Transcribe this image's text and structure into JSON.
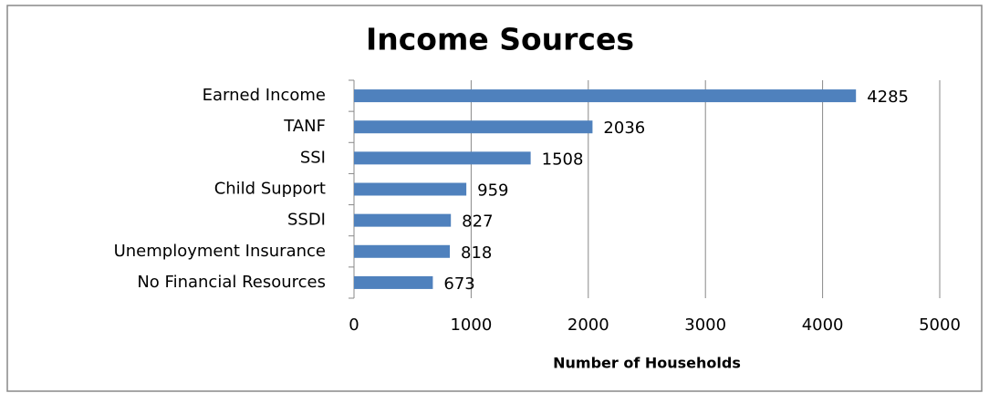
{
  "chart_data": {
    "type": "bar",
    "orientation": "horizontal",
    "title": "Income Sources",
    "x_label": "Number of Households",
    "categories": [
      "Earned Income",
      "TANF",
      "SSI",
      "Child Support",
      "SSDI",
      "Unemployment Insurance",
      "No Financial Resources"
    ],
    "values": [
      4285,
      2036,
      1508,
      959,
      827,
      818,
      673
    ],
    "color": "#4f81bd",
    "xlim": [
      0,
      5000
    ],
    "xticks": [
      0,
      1000,
      2000,
      3000,
      4000,
      5000
    ],
    "grid": true
  }
}
